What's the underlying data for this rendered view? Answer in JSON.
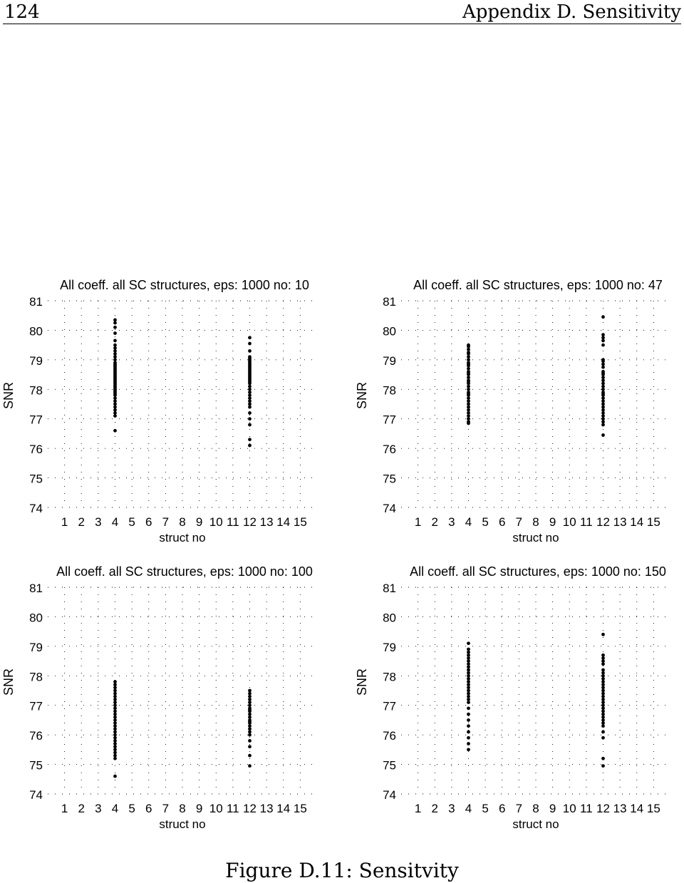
{
  "header": {
    "page_number": "124",
    "chapter": "Appendix D. Sensitivity"
  },
  "caption": "Figure D.11: Sensitvity",
  "chart_data": [
    {
      "type": "scatter",
      "title": "All coeff. all SC structures, eps: 1000 no: 10",
      "xlabel": "struct no",
      "ylabel": "SNR",
      "xticks": [
        "1",
        "2",
        "3",
        "4",
        "5",
        "6",
        "7",
        "8",
        "9",
        "10",
        "11",
        "12",
        "13",
        "14",
        "15"
      ],
      "yticks": [
        74,
        75,
        76,
        77,
        78,
        79,
        80,
        81
      ],
      "ylim": [
        74,
        81
      ],
      "xlim": [
        0,
        16
      ],
      "grid": true,
      "series": [
        {
          "x": 4,
          "values": [
            80.35,
            80.25,
            80.1,
            79.9,
            79.65,
            79.5,
            79.4,
            79.3,
            79.2,
            79.1,
            79.0,
            78.9,
            78.85,
            78.8,
            78.75,
            78.7,
            78.65,
            78.6,
            78.55,
            78.5,
            78.45,
            78.4,
            78.35,
            78.3,
            78.25,
            78.2,
            78.15,
            78.1,
            78.05,
            78.0,
            77.95,
            77.9,
            77.85,
            77.8,
            77.7,
            77.6,
            77.5,
            77.4,
            77.3,
            77.2,
            77.1,
            76.6
          ]
        },
        {
          "x": 12,
          "values": [
            79.75,
            79.55,
            79.3,
            79.1,
            79.05,
            79.0,
            78.95,
            78.9,
            78.85,
            78.8,
            78.75,
            78.7,
            78.65,
            78.6,
            78.55,
            78.5,
            78.45,
            78.4,
            78.35,
            78.3,
            78.25,
            78.2,
            78.1,
            78.0,
            77.9,
            77.8,
            77.7,
            77.6,
            77.5,
            77.4,
            77.2,
            77.0,
            76.8,
            76.3,
            76.1
          ]
        }
      ]
    },
    {
      "type": "scatter",
      "title": "All coeff. all SC structures, eps: 1000 no: 47",
      "xlabel": "struct no",
      "ylabel": "SNR",
      "xticks": [
        "1",
        "2",
        "3",
        "4",
        "5",
        "6",
        "7",
        "8",
        "9",
        "10",
        "11",
        "12",
        "13",
        "14",
        "15"
      ],
      "yticks": [
        74,
        75,
        76,
        77,
        78,
        79,
        80,
        81
      ],
      "ylim": [
        74,
        81
      ],
      "xlim": [
        0,
        16
      ],
      "grid": true,
      "series": [
        {
          "x": 4,
          "values": [
            79.5,
            79.45,
            79.35,
            79.25,
            79.2,
            79.1,
            79.0,
            78.9,
            78.85,
            78.8,
            78.7,
            78.6,
            78.55,
            78.5,
            78.4,
            78.3,
            78.25,
            78.2,
            78.1,
            78.0,
            77.9,
            77.85,
            77.8,
            77.7,
            77.6,
            77.5,
            77.4,
            77.3,
            77.2,
            77.1,
            77.0,
            76.9,
            76.85
          ]
        },
        {
          "x": 12,
          "values": [
            80.45,
            79.85,
            79.75,
            79.65,
            79.5,
            79.0,
            78.95,
            78.85,
            78.75,
            78.6,
            78.55,
            78.5,
            78.4,
            78.3,
            78.2,
            78.1,
            78.0,
            77.9,
            77.85,
            77.8,
            77.7,
            77.6,
            77.5,
            77.4,
            77.3,
            77.2,
            77.1,
            77.0,
            76.9,
            76.8,
            76.45
          ]
        }
      ]
    },
    {
      "type": "scatter",
      "title": "All coeff. all SC structures, eps: 1000 no: 100",
      "xlabel": "struct no",
      "ylabel": "SNR",
      "xticks": [
        "1",
        "2",
        "3",
        "4",
        "5",
        "6",
        "7",
        "8",
        "9",
        "10",
        "11",
        "12",
        "13",
        "14",
        "15"
      ],
      "yticks": [
        74,
        75,
        76,
        77,
        78,
        79,
        80,
        81
      ],
      "ylim": [
        74,
        81
      ],
      "xlim": [
        0,
        16
      ],
      "grid": true,
      "series": [
        {
          "x": 4,
          "values": [
            77.8,
            77.7,
            77.6,
            77.5,
            77.4,
            77.3,
            77.2,
            77.1,
            77.0,
            76.9,
            76.8,
            76.7,
            76.6,
            76.5,
            76.4,
            76.3,
            76.2,
            76.1,
            76.0,
            75.9,
            75.8,
            75.7,
            75.6,
            75.5,
            75.4,
            75.3,
            75.2,
            74.6
          ]
        },
        {
          "x": 12,
          "values": [
            77.5,
            77.4,
            77.3,
            77.2,
            77.1,
            77.0,
            76.9,
            76.85,
            76.8,
            76.7,
            76.6,
            76.5,
            76.45,
            76.4,
            76.3,
            76.2,
            76.1,
            76.0,
            75.8,
            75.6,
            75.3,
            74.95
          ]
        }
      ]
    },
    {
      "type": "scatter",
      "title": "All coeff. all SC structures, eps: 1000 no: 150",
      "xlabel": "struct no",
      "ylabel": "SNR",
      "xticks": [
        "1",
        "2",
        "3",
        "4",
        "5",
        "6",
        "7",
        "8",
        "9",
        "10",
        "11",
        "12",
        "13",
        "14",
        "15"
      ],
      "yticks": [
        74,
        75,
        76,
        77,
        78,
        79,
        80,
        81
      ],
      "ylim": [
        74,
        81
      ],
      "xlim": [
        0,
        16
      ],
      "grid": true,
      "series": [
        {
          "x": 4,
          "values": [
            79.1,
            78.9,
            78.8,
            78.7,
            78.6,
            78.5,
            78.4,
            78.3,
            78.2,
            78.1,
            78.0,
            77.9,
            77.8,
            77.7,
            77.6,
            77.5,
            77.4,
            77.3,
            77.2,
            77.1,
            76.9,
            76.7,
            76.5,
            76.3,
            76.1,
            75.9,
            75.7,
            75.5
          ]
        },
        {
          "x": 12,
          "values": [
            79.4,
            78.7,
            78.6,
            78.5,
            78.4,
            78.2,
            78.1,
            78.0,
            77.9,
            77.8,
            77.7,
            77.6,
            77.5,
            77.4,
            77.3,
            77.2,
            77.1,
            77.0,
            76.9,
            76.8,
            76.7,
            76.6,
            76.5,
            76.4,
            76.3,
            76.1,
            75.9,
            75.2,
            74.95
          ]
        }
      ]
    }
  ]
}
